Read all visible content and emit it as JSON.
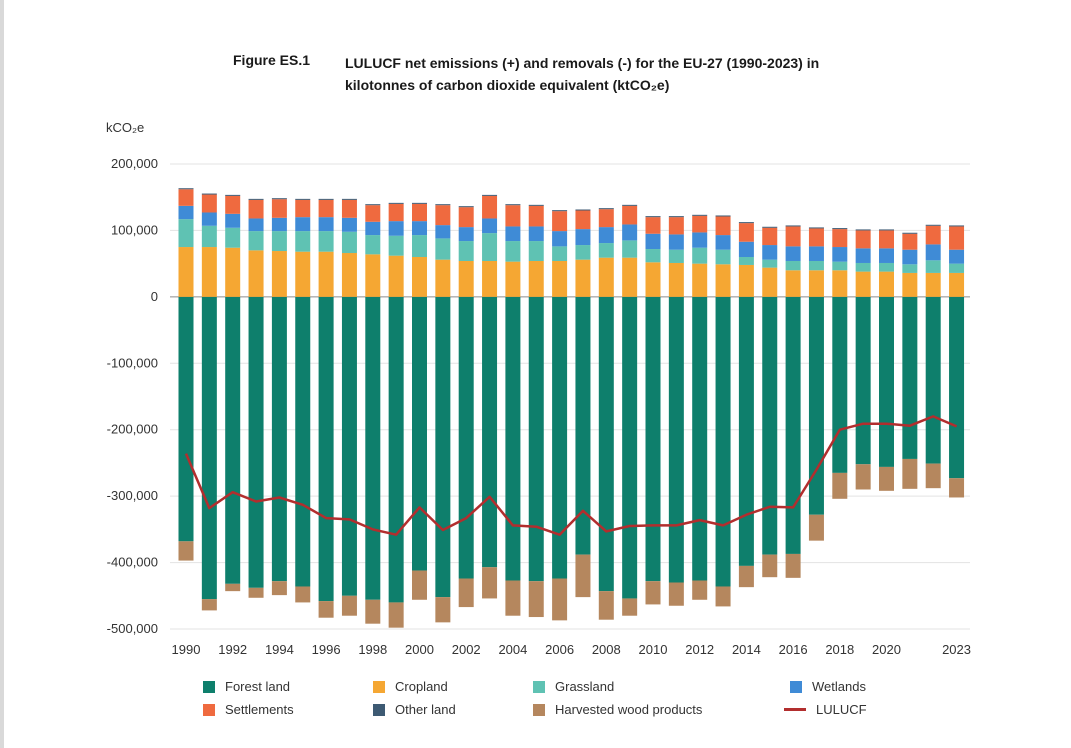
{
  "figure_label": "Figure ES.1",
  "title_line1": "LULUCF net emissions (+) and removals (-) for the EU-27 (1990-2023) in",
  "title_line2": "kilotonnes of carbon dioxide equivalent (ktCO₂e)",
  "chart_data": {
    "type": "bar",
    "stacked": true,
    "ylabel": "kCO₂e",
    "ylim": [
      -500000,
      200000
    ],
    "yticks": [
      200000,
      100000,
      0,
      -100000,
      -200000,
      -300000,
      -400000,
      -500000
    ],
    "ytick_labels": [
      "200,000",
      "100,000",
      "0",
      "-100,000",
      "-200,000",
      "-300,000",
      "-400,000",
      "-500,000"
    ],
    "x": [
      1990,
      1991,
      1992,
      1993,
      1994,
      1995,
      1996,
      1997,
      1998,
      1999,
      2000,
      2001,
      2002,
      2003,
      2004,
      2005,
      2006,
      2007,
      2008,
      2009,
      2010,
      2011,
      2012,
      2013,
      2014,
      2015,
      2016,
      2017,
      2018,
      2019,
      2020,
      2021,
      2022,
      2023
    ],
    "xtick_labels": [
      "1990",
      "1992",
      "1994",
      "1996",
      "1998",
      "2000",
      "2002",
      "2004",
      "2006",
      "2008",
      "2010",
      "2012",
      "2014",
      "2016",
      "2018",
      "2020",
      "2023"
    ],
    "grid": true,
    "legend_position": "bottom",
    "series": [
      {
        "name": "Forest land",
        "color": "#0e7f6c",
        "values": [
          -368000,
          -455000,
          -432000,
          -438000,
          -428000,
          -436000,
          -458000,
          -450000,
          -456000,
          -460000,
          -412000,
          -452000,
          -424000,
          -407000,
          -427000,
          -428000,
          -424000,
          -388000,
          -443000,
          -454000,
          -428000,
          -430000,
          -427000,
          -436000,
          -405000,
          -388000,
          -387000,
          -328000,
          -265000,
          -252000,
          -256000,
          -244000,
          -251000,
          -273000
        ]
      },
      {
        "name": "Harvested wood products",
        "color": "#b5875e",
        "values": [
          -29000,
          -17000,
          -11000,
          -15000,
          -21000,
          -24000,
          -25000,
          -30000,
          -36000,
          -38000,
          -44000,
          -38000,
          -43000,
          -47000,
          -53000,
          -54000,
          -63000,
          -64000,
          -43000,
          -26000,
          -35000,
          -35000,
          -29000,
          -30000,
          -32000,
          -34000,
          -36000,
          -39000,
          -39000,
          -38000,
          -36000,
          -45000,
          -37000,
          -29000
        ]
      },
      {
        "name": "Cropland",
        "color": "#f5a733",
        "values": [
          75000,
          75000,
          74000,
          70000,
          69000,
          68000,
          68000,
          66000,
          64000,
          62000,
          60000,
          56000,
          54000,
          54000,
          53000,
          54000,
          54000,
          56000,
          59000,
          59000,
          52000,
          51000,
          50000,
          49000,
          48000,
          44000,
          40000,
          40000,
          40000,
          38000,
          38000,
          36000,
          36000,
          36000
        ]
      },
      {
        "name": "Grassland",
        "color": "#5fc2b3",
        "values": [
          42000,
          32000,
          30000,
          29000,
          30000,
          31000,
          31000,
          32000,
          29000,
          30000,
          33000,
          32000,
          30000,
          42000,
          31000,
          30000,
          22000,
          22000,
          22000,
          26000,
          20000,
          20000,
          24000,
          22000,
          12000,
          12000,
          14000,
          14000,
          13000,
          13000,
          13000,
          13000,
          19000,
          14000
        ]
      },
      {
        "name": "Wetlands",
        "color": "#3f8bd6",
        "values": [
          20000,
          20000,
          21000,
          19000,
          20000,
          21000,
          21000,
          21000,
          20000,
          22000,
          21000,
          20000,
          21000,
          22000,
          22000,
          22000,
          23000,
          24000,
          24000,
          24000,
          23000,
          23000,
          23000,
          22000,
          23000,
          22000,
          22000,
          22000,
          22000,
          22000,
          22000,
          22000,
          24000,
          21000
        ]
      },
      {
        "name": "Settlements",
        "color": "#ef6a3f",
        "values": [
          25000,
          27000,
          27000,
          28000,
          28000,
          26000,
          26000,
          27000,
          25000,
          26000,
          26000,
          30000,
          30000,
          34000,
          32000,
          31000,
          30000,
          28000,
          27000,
          28000,
          25000,
          26000,
          25000,
          28000,
          28000,
          26000,
          30000,
          27000,
          27000,
          27000,
          27000,
          24000,
          28000,
          35000
        ]
      },
      {
        "name": "Other land",
        "color": "#3d5a73",
        "values": [
          1500,
          1500,
          1500,
          1500,
          1500,
          1500,
          1500,
          1500,
          1500,
          1500,
          1500,
          1500,
          1500,
          1500,
          1500,
          1500,
          1500,
          1500,
          1500,
          1500,
          1500,
          1500,
          1500,
          1500,
          1500,
          1500,
          1500,
          1500,
          1500,
          1500,
          1500,
          1500,
          1500,
          1500
        ]
      }
    ],
    "line": {
      "name": "LULUCF",
      "color": "#b22e2e",
      "values": [
        -236000,
        -318000,
        -294000,
        -308000,
        -302000,
        -313000,
        -333000,
        -335000,
        -350000,
        -358000,
        -317000,
        -351000,
        -333000,
        -301000,
        -344000,
        -346000,
        -358000,
        -322000,
        -353000,
        -345000,
        -344000,
        -344000,
        -336000,
        -344000,
        -328000,
        -316000,
        -317000,
        -260000,
        -200000,
        -191000,
        -191000,
        -194000,
        -180000,
        -195000
      ]
    },
    "legend": [
      {
        "name": "Forest land",
        "color": "#0e7f6c",
        "kind": "box"
      },
      {
        "name": "Cropland",
        "color": "#f5a733",
        "kind": "box"
      },
      {
        "name": "Grassland",
        "color": "#5fc2b3",
        "kind": "box"
      },
      {
        "name": "Wetlands",
        "color": "#3f8bd6",
        "kind": "box"
      },
      {
        "name": "Settlements",
        "color": "#ef6a3f",
        "kind": "box"
      },
      {
        "name": "Other land",
        "color": "#3d5a73",
        "kind": "box"
      },
      {
        "name": "Harvested wood products",
        "color": "#b5875e",
        "kind": "box"
      },
      {
        "name": "LULUCF",
        "color": "#b22e2e",
        "kind": "line"
      }
    ]
  }
}
